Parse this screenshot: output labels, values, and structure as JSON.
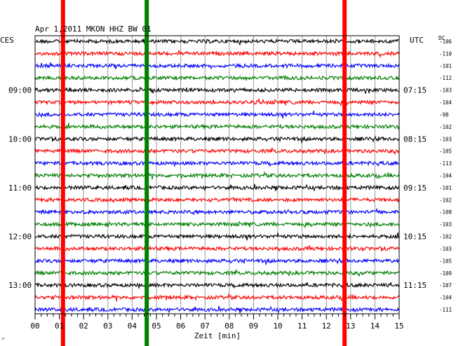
{
  "chart_data": {
    "type": "line",
    "title": "Apr 1,2011   MKON HHZ BW 01",
    "left_timezone": "CES",
    "right_timezone": "UTC",
    "dc_label": "DC",
    "xlabel": "Zeit [min]",
    "xlim": [
      0,
      15
    ],
    "x_ticks": [
      "00",
      "01",
      "02",
      "03",
      "04",
      "05",
      "06",
      "07",
      "08",
      "09",
      "10",
      "11",
      "12",
      "13",
      "14",
      "15"
    ],
    "grid": true,
    "trace_color_cycle": [
      "#000000",
      "#ff0000",
      "#0000ff",
      "#008000"
    ],
    "left_time_labels": [
      {
        "row": 4,
        "label": "09:00"
      },
      {
        "row": 8,
        "label": "10:00"
      },
      {
        "row": 12,
        "label": "11:00"
      },
      {
        "row": 16,
        "label": "12:00"
      },
      {
        "row": 20,
        "label": "13:00"
      }
    ],
    "right_time_labels": [
      {
        "row": 4,
        "label": "07:15"
      },
      {
        "row": 8,
        "label": "08:15"
      },
      {
        "row": 12,
        "label": "09:15"
      },
      {
        "row": 16,
        "label": "10:15"
      },
      {
        "row": 20,
        "label": "11:15"
      }
    ],
    "dc_offsets": [
      -106,
      -110,
      -101,
      -112,
      -103,
      -104,
      -98,
      -102,
      -103,
      -105,
      -113,
      -104,
      -101,
      -102,
      -108,
      -103,
      -102,
      -103,
      -105,
      -109,
      -107,
      -104,
      -111
    ],
    "event_markers": [
      {
        "x_min": 1.15,
        "color": "#ff0000"
      },
      {
        "x_min": 4.6,
        "color": "#008000"
      },
      {
        "x_min": 12.75,
        "color": "#ff0000"
      }
    ],
    "footer_mark": "^"
  }
}
